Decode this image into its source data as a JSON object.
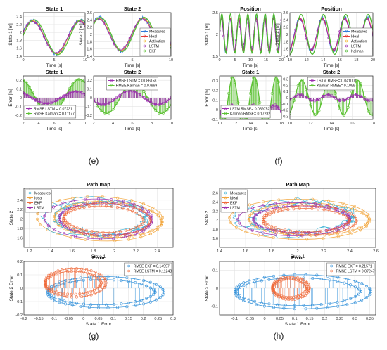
{
  "captions": [
    "(e)",
    "(f)",
    "(g)",
    "(h)"
  ],
  "colors": {
    "measures": "#2f7ad9",
    "ideal": "#e53935",
    "activation": "#f0b429",
    "lstm": "#9b2fae",
    "ekf": "#5cc133",
    "kalman": "#4cb82f",
    "path_ideal": "#f2a53a",
    "path_measures": "#45b6d8",
    "path_lstm": "#9b2fae",
    "path_ekf": "#ef6a3a",
    "err_ekf": "#2f8fd9",
    "err_lstm": "#ef6a3a"
  },
  "chart_data": [
    {
      "id": "e_state1",
      "type": "line",
      "title": "State 1",
      "xlabel": "Time [s]",
      "ylabel": "State 1 [m]",
      "xlim": [
        0,
        10
      ],
      "ylim": [
        1.4,
        2.5
      ],
      "xticks": [
        0,
        5,
        10
      ],
      "yticks": [
        1.4,
        1.6,
        1.8,
        2,
        2.2,
        2.4
      ],
      "grid": true,
      "series": [
        {
          "key": "measures",
          "amp": 0.42,
          "freq": 0.46,
          "off": 1.88,
          "phase": 0.3
        },
        {
          "key": "ideal",
          "amp": 0.42,
          "freq": 0.46,
          "off": 1.88,
          "phase": 0.3
        },
        {
          "key": "activation",
          "amp": 0.42,
          "freq": 0.46,
          "off": 1.88,
          "phase": 0.3
        },
        {
          "key": "lstm",
          "amp": 0.4,
          "freq": 0.46,
          "off": 1.88,
          "phase": 0.35
        },
        {
          "key": "ekf",
          "amp": 0.44,
          "freq": 0.46,
          "off": 1.88,
          "phase": 0.1
        }
      ]
    },
    {
      "id": "e_state2",
      "type": "line",
      "title": "State 2",
      "xlabel": "Time [s]",
      "ylabel": "State 2 [m]",
      "xlim": [
        0,
        10
      ],
      "ylim": [
        1.4,
        2.6
      ],
      "xticks": [
        0,
        5,
        10
      ],
      "yticks": [
        1.4,
        1.6,
        1.8,
        2,
        2.2,
        2.4,
        2.6
      ],
      "grid": true,
      "legend": {
        "position": "bottom-right",
        "entries": [
          "Measures",
          "Ideal",
          "Activation",
          "LSTM",
          "EKF"
        ],
        "keys": [
          "measures",
          "ideal",
          "activation",
          "lstm",
          "ekf"
        ]
      },
      "series": [
        {
          "key": "measures",
          "amp": 0.45,
          "freq": 0.62,
          "off": 2.0,
          "phase": 0.8
        },
        {
          "key": "ideal",
          "amp": 0.45,
          "freq": 0.62,
          "off": 2.0,
          "phase": 0.8
        },
        {
          "key": "activation",
          "amp": 0.45,
          "freq": 0.62,
          "off": 2.0,
          "phase": 0.8
        },
        {
          "key": "lstm",
          "amp": 0.43,
          "freq": 0.62,
          "off": 2.0,
          "phase": 0.85
        },
        {
          "key": "ekf",
          "amp": 0.47,
          "freq": 0.62,
          "off": 2.0,
          "phase": 0.6
        }
      ]
    },
    {
      "id": "e_err1",
      "type": "line",
      "title": "State 1",
      "xlabel": "Time [s]",
      "ylabel": "Error [m]",
      "xlim": [
        2,
        10
      ],
      "ylim": [
        -0.25,
        0.25
      ],
      "xticks": [
        2,
        4,
        6,
        8,
        10
      ],
      "yticks": [
        -0.2,
        -0.1,
        0,
        0.1,
        0.2
      ],
      "grid": true,
      "legend": {
        "position": "bottom-left",
        "entries": [
          "RMSE LSTM = 0.07231",
          "RMSE Kalman = 0.11177"
        ],
        "keys": [
          "lstm",
          "ekf"
        ]
      },
      "series": [
        {
          "key": "ekf",
          "amp": 0.21,
          "freq": 0.46,
          "off": 0.0,
          "phase": 0.2,
          "stems": true
        },
        {
          "key": "lstm",
          "amp": 0.07,
          "freq": 0.46,
          "off": 0.0,
          "phase": 0.6,
          "stems": true
        }
      ]
    },
    {
      "id": "e_err2",
      "type": "line",
      "title": "State 2",
      "xlabel": "Time [s]",
      "ylabel": "",
      "xlim": [
        2,
        10
      ],
      "ylim": [
        -0.25,
        0.25
      ],
      "xticks": [
        2,
        4,
        6,
        8,
        10
      ],
      "yticks": [
        -0.2,
        -0.1,
        0,
        0.1,
        0.2
      ],
      "grid": true,
      "legend": {
        "position": "top",
        "entries": [
          "RMSE LSTM = 0.086158",
          "RMSE Kalman = 0.07969"
        ],
        "keys": [
          "lstm",
          "ekf"
        ]
      },
      "series": [
        {
          "key": "ekf",
          "amp": 0.18,
          "freq": 0.62,
          "off": 0.0,
          "phase": 1.0,
          "stems": true
        },
        {
          "key": "lstm",
          "amp": 0.08,
          "freq": 0.62,
          "off": 0.0,
          "phase": 1.4,
          "stems": true
        }
      ]
    },
    {
      "id": "f_pos1",
      "type": "line",
      "title": "Position",
      "xlabel": "Time [s]",
      "ylabel": "State 1 [m]",
      "xlim": [
        0,
        20
      ],
      "ylim": [
        1.5,
        2.5
      ],
      "xticks": [
        0,
        5,
        10,
        15,
        20
      ],
      "yticks": [
        1.5,
        2,
        2.5
      ],
      "grid": true,
      "series": [
        {
          "key": "measures",
          "amp": 0.38,
          "freq": 1.25,
          "off": 2.0,
          "phase": 0.2
        },
        {
          "key": "ideal",
          "amp": 0.38,
          "freq": 1.25,
          "off": 2.0,
          "phase": 0.2
        },
        {
          "key": "lstm",
          "amp": 0.36,
          "freq": 1.25,
          "off": 2.0,
          "phase": 0.25
        },
        {
          "key": "kalman",
          "amp": 0.45,
          "freq": 1.25,
          "off": 2.02,
          "phase": -0.1
        }
      ]
    },
    {
      "id": "f_pos2",
      "type": "line",
      "title": "Position",
      "xlabel": "Time [s]",
      "ylabel": "State 2 [m]",
      "xlim": [
        10,
        20
      ],
      "ylim": [
        1.4,
        2.6
      ],
      "xticks": [
        10,
        12,
        14,
        16,
        18,
        20
      ],
      "yticks": [
        1.4,
        1.6,
        1.8,
        2,
        2.2,
        2.4,
        2.6
      ],
      "grid": true,
      "legend": {
        "position": "bottom-right",
        "entries": [
          "Measures",
          "Ideal",
          "Activation",
          "LSTM",
          "Kalman"
        ],
        "keys": [
          "measures",
          "ideal",
          "activation",
          "lstm",
          "kalman"
        ]
      },
      "series": [
        {
          "key": "measures",
          "amp": 0.45,
          "freq": 1.3,
          "off": 2.0,
          "phase": 0.5
        },
        {
          "key": "ideal",
          "amp": 0.45,
          "freq": 1.3,
          "off": 2.0,
          "phase": 0.5
        },
        {
          "key": "lstm",
          "amp": 0.42,
          "freq": 1.3,
          "off": 2.0,
          "phase": 0.55
        },
        {
          "key": "kalman",
          "amp": 0.55,
          "freq": 1.3,
          "off": 2.0,
          "phase": 0.2
        }
      ]
    },
    {
      "id": "f_err1",
      "type": "line",
      "title": "State 1",
      "xlabel": "Time [s]",
      "ylabel": "Error [m]",
      "xlim": [
        10,
        18
      ],
      "ylim": [
        -0.1,
        0.35
      ],
      "xticks": [
        10,
        12,
        14,
        16,
        18
      ],
      "yticks": [
        -0.1,
        0,
        0.1,
        0.2,
        0.3
      ],
      "grid": true,
      "legend": {
        "position": "bottom-left",
        "entries": [
          "LSTM RMSE= 0.059752",
          "Kalman RMSE= 0.17282"
        ],
        "keys": [
          "lstm",
          "ekf"
        ]
      },
      "series": [
        {
          "key": "ekf",
          "amp": 0.28,
          "freq": 1.25,
          "off": 0.06,
          "phase": 0.4,
          "stems": true
        },
        {
          "key": "lstm",
          "amp": 0.05,
          "freq": 1.25,
          "off": 0.0,
          "phase": 0.9,
          "stems": true
        }
      ]
    },
    {
      "id": "f_err2",
      "type": "line",
      "title": "State 2",
      "xlabel": "Time [s]",
      "ylabel": "",
      "xlim": [
        10,
        18
      ],
      "ylim": [
        -0.35,
        0.35
      ],
      "xticks": [
        10,
        12,
        14,
        16,
        18
      ],
      "yticks": [
        -0.3,
        -0.2,
        -0.1,
        0,
        0.1,
        0.2,
        0.3
      ],
      "grid": true,
      "legend": {
        "position": "top",
        "entries": [
          "LSTM RMSE= 0.041007",
          "Kalman RMSE= 0.1099"
        ],
        "keys": [
          "lstm",
          "ekf"
        ]
      },
      "series": [
        {
          "key": "ekf",
          "amp": 0.28,
          "freq": 1.3,
          "off": 0.0,
          "phase": 0.7,
          "stems": true
        },
        {
          "key": "lstm",
          "amp": 0.05,
          "freq": 1.3,
          "off": 0.0,
          "phase": 1.1,
          "stems": true
        }
      ]
    },
    {
      "id": "g_path",
      "type": "scatter",
      "title": "Path map",
      "xlabel": "State 1",
      "ylabel": "State 2",
      "xlim": [
        1.15,
        2.55
      ],
      "ylim": [
        1.4,
        2.65
      ],
      "xticks": [
        1.2,
        1.4,
        1.6,
        1.8,
        2,
        2.2,
        2.4
      ],
      "yticks": [
        1.6,
        1.8,
        2,
        2.2,
        2.4
      ],
      "grid": true,
      "legend": {
        "position": "top-left",
        "entries": [
          "Measures",
          "Ideal",
          "EKF",
          "LSTM"
        ],
        "keys": [
          "path_measures",
          "path_ideal",
          "path_ekf",
          "path_lstm"
        ]
      },
      "series": [
        {
          "key": "path_ideal",
          "cx": 1.9,
          "cy": 2.0,
          "rx": 0.55,
          "ry": 0.42,
          "tilt": -0.18,
          "loops": 3
        },
        {
          "key": "path_measures",
          "cx": 1.85,
          "cy": 2.02,
          "rx": 0.45,
          "ry": 0.36,
          "tilt": -0.1,
          "loops": 3
        },
        {
          "key": "path_lstm",
          "cx": 1.88,
          "cy": 2.0,
          "rx": 0.47,
          "ry": 0.38,
          "tilt": -0.12,
          "loops": 3
        },
        {
          "key": "path_ekf",
          "cx": 1.88,
          "cy": 2.0,
          "rx": 0.4,
          "ry": 0.32,
          "tilt": -0.15,
          "loops": 2
        }
      ]
    },
    {
      "id": "g_err",
      "type": "scatter",
      "title": "Error",
      "xlabel": "State 1 Error",
      "ylabel": "State 2 Error",
      "xlim": [
        -0.2,
        0.3
      ],
      "ylim": [
        -0.2,
        0.2
      ],
      "xticks": [
        -0.2,
        -0.15,
        -0.1,
        -0.05,
        0,
        0.05,
        0.1,
        0.15,
        0.2,
        0.25,
        0.3
      ],
      "yticks": [
        -0.2,
        -0.1,
        0,
        0.1,
        0.2
      ],
      "grid": true,
      "legend": {
        "position": "top-right",
        "entries": [
          "RMSE EKF = 0.14997",
          "RMSE LSTM = 0.11248"
        ],
        "keys": [
          "err_ekf",
          "err_lstm"
        ]
      },
      "series": [
        {
          "key": "err_ekf",
          "cx": 0.05,
          "cy": -0.03,
          "rx": 0.19,
          "ry": 0.11,
          "tilt": 0.0,
          "loops": 2
        },
        {
          "key": "err_lstm",
          "cx": -0.04,
          "cy": 0.04,
          "rx": 0.1,
          "ry": 0.1,
          "tilt": 0.0,
          "loops": 2
        }
      ]
    },
    {
      "id": "h_path",
      "type": "scatter",
      "title": "Path Map",
      "xlabel": "State 1",
      "ylabel": "State 2",
      "xlim": [
        1.4,
        2.6
      ],
      "ylim": [
        1.4,
        2.7
      ],
      "xticks": [
        1.4,
        1.6,
        1.8,
        2,
        2.2,
        2.4,
        2.6
      ],
      "yticks": [
        1.6,
        1.8,
        2,
        2.2,
        2.4,
        2.6
      ],
      "grid": true,
      "legend": {
        "position": "top-left",
        "entries": [
          "Measures",
          "Ideal",
          "EKF",
          "LSTM"
        ],
        "keys": [
          "path_measures",
          "path_ideal",
          "path_ekf",
          "path_lstm"
        ]
      },
      "series": [
        {
          "key": "path_ideal",
          "cx": 2.05,
          "cy": 2.02,
          "rx": 0.5,
          "ry": 0.4,
          "tilt": -0.05,
          "loops": 3
        },
        {
          "key": "path_measures",
          "cx": 2.0,
          "cy": 2.05,
          "rx": 0.42,
          "ry": 0.35,
          "tilt": 0.0,
          "loops": 3
        },
        {
          "key": "path_lstm",
          "cx": 2.0,
          "cy": 2.02,
          "rx": 0.4,
          "ry": 0.33,
          "tilt": 0.0,
          "loops": 3
        },
        {
          "key": "path_ekf",
          "cx": 2.05,
          "cy": 2.0,
          "rx": 0.35,
          "ry": 0.3,
          "tilt": -0.05,
          "loops": 2
        }
      ]
    },
    {
      "id": "h_err",
      "type": "scatter",
      "title": "Error",
      "xlabel": "State 1 Error",
      "ylabel": "State 2 Error",
      "xlim": [
        -0.15,
        0.37
      ],
      "ylim": [
        -0.15,
        0.15
      ],
      "xticks": [
        -0.1,
        -0.05,
        0,
        0.05,
        0.1,
        0.15,
        0.2,
        0.25,
        0.3,
        0.35
      ],
      "yticks": [
        -0.1,
        0,
        0.1
      ],
      "grid": true,
      "legend": {
        "position": "top-right",
        "entries": [
          "RMSE EKF = 0.21571",
          "RMSE LSTM = 0.07247"
        ],
        "keys": [
          "err_ekf",
          "err_lstm"
        ]
      },
      "series": [
        {
          "key": "err_ekf",
          "cx": 0.1,
          "cy": -0.02,
          "rx": 0.22,
          "ry": 0.09,
          "tilt": 0.0,
          "loops": 2
        },
        {
          "key": "err_lstm",
          "cx": 0.08,
          "cy": 0.0,
          "rx": 0.06,
          "ry": 0.06,
          "tilt": 0.0,
          "loops": 2
        }
      ]
    }
  ]
}
